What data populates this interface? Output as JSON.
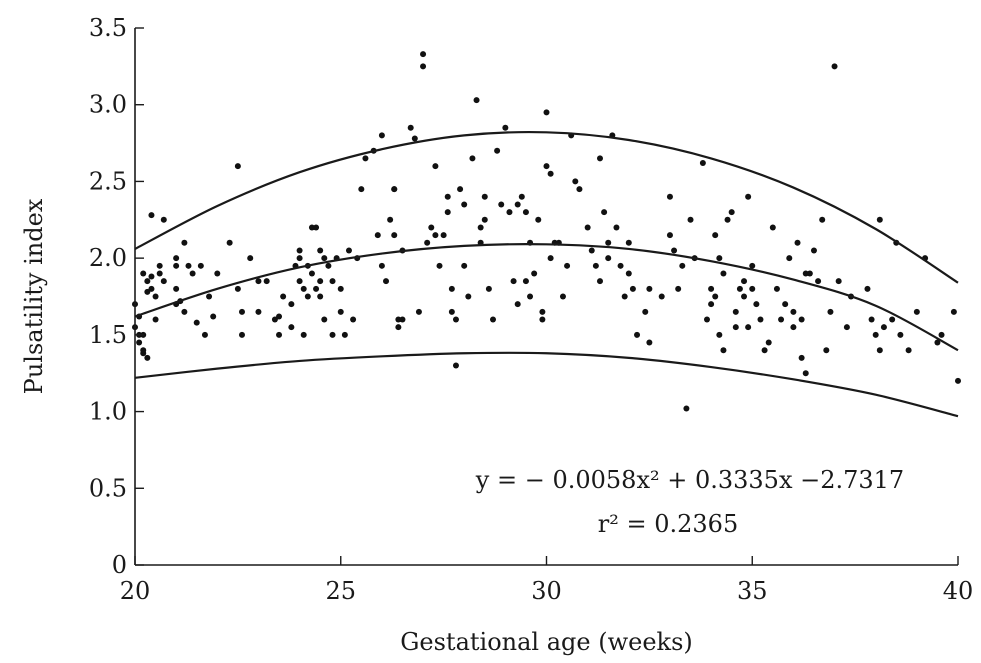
{
  "chart_data": {
    "type": "scatter",
    "xlabel": "Gestational age (weeks)",
    "ylabel": "Pulsatility index",
    "xlim": [
      20,
      40
    ],
    "ylim": [
      0,
      3.5
    ],
    "x_ticks": [
      20,
      25,
      30,
      35,
      40
    ],
    "x_tick_labels": [
      "20",
      "25",
      "30",
      "35",
      "40"
    ],
    "y_ticks": [
      0,
      0.5,
      1.0,
      1.5,
      2.0,
      2.5,
      3.0,
      3.5
    ],
    "y_tick_labels": [
      "0",
      "0.5",
      "1.0",
      "1.5",
      "2.0",
      "2.5",
      "3.0",
      "3.5"
    ],
    "grid": false,
    "annotations": [
      "y = − 0.0058x² + 0.3335x −2.7317",
      "r² = 0.2365"
    ],
    "curves": [
      {
        "x": [
          20,
          22,
          24,
          26,
          28,
          30,
          32,
          34,
          36,
          38,
          40
        ],
        "y": [
          2.06,
          2.34,
          2.56,
          2.71,
          2.8,
          2.82,
          2.77,
          2.65,
          2.46,
          2.19,
          1.84
        ]
      },
      {
        "x": [
          20,
          22,
          24,
          26,
          28,
          30,
          32,
          34,
          36,
          38,
          40
        ],
        "y": [
          1.62,
          1.8,
          1.94,
          2.03,
          2.08,
          2.09,
          2.06,
          1.98,
          1.86,
          1.69,
          1.4
        ]
      },
      {
        "x": [
          20,
          22,
          24,
          26,
          28,
          30,
          32,
          34,
          36,
          38,
          40
        ],
        "y": [
          1.22,
          1.28,
          1.33,
          1.36,
          1.38,
          1.38,
          1.35,
          1.29,
          1.21,
          1.11,
          0.97
        ]
      }
    ],
    "points": [
      [
        20.0,
        1.7
      ],
      [
        20.0,
        1.55
      ],
      [
        20.1,
        1.5
      ],
      [
        20.1,
        1.45
      ],
      [
        20.1,
        1.62
      ],
      [
        20.2,
        1.5
      ],
      [
        20.2,
        1.38
      ],
      [
        20.2,
        1.4
      ],
      [
        20.2,
        1.9
      ],
      [
        20.3,
        1.85
      ],
      [
        20.3,
        1.35
      ],
      [
        20.3,
        1.78
      ],
      [
        20.4,
        1.8
      ],
      [
        20.4,
        1.88
      ],
      [
        20.4,
        2.28
      ],
      [
        20.5,
        1.75
      ],
      [
        20.5,
        1.6
      ],
      [
        20.6,
        1.95
      ],
      [
        20.6,
        1.9
      ],
      [
        20.7,
        2.25
      ],
      [
        20.7,
        1.85
      ],
      [
        21.0,
        2.0
      ],
      [
        21.0,
        1.95
      ],
      [
        21.0,
        1.8
      ],
      [
        21.0,
        1.7
      ],
      [
        21.1,
        1.72
      ],
      [
        21.2,
        1.65
      ],
      [
        21.2,
        2.1
      ],
      [
        21.3,
        1.95
      ],
      [
        21.4,
        1.9
      ],
      [
        21.5,
        1.58
      ],
      [
        21.6,
        1.95
      ],
      [
        21.7,
        1.5
      ],
      [
        21.8,
        1.75
      ],
      [
        21.9,
        1.62
      ],
      [
        22.0,
        1.9
      ],
      [
        22.3,
        2.1
      ],
      [
        22.5,
        2.6
      ],
      [
        22.5,
        1.8
      ],
      [
        22.6,
        1.5
      ],
      [
        22.6,
        1.65
      ],
      [
        22.8,
        2.0
      ],
      [
        23.0,
        1.65
      ],
      [
        23.0,
        1.85
      ],
      [
        23.2,
        1.85
      ],
      [
        23.4,
        1.6
      ],
      [
        23.5,
        1.62
      ],
      [
        23.5,
        1.5
      ],
      [
        23.6,
        1.75
      ],
      [
        23.8,
        1.55
      ],
      [
        23.8,
        1.7
      ],
      [
        23.9,
        1.95
      ],
      [
        24.0,
        2.05
      ],
      [
        24.0,
        2.0
      ],
      [
        24.0,
        1.85
      ],
      [
        24.1,
        1.8
      ],
      [
        24.1,
        1.5
      ],
      [
        24.2,
        1.75
      ],
      [
        24.2,
        1.95
      ],
      [
        24.3,
        1.9
      ],
      [
        24.3,
        2.2
      ],
      [
        24.4,
        2.2
      ],
      [
        24.4,
        1.8
      ],
      [
        24.5,
        1.85
      ],
      [
        24.5,
        2.05
      ],
      [
        24.5,
        1.75
      ],
      [
        24.6,
        1.6
      ],
      [
        24.6,
        2.0
      ],
      [
        24.7,
        1.95
      ],
      [
        24.8,
        1.5
      ],
      [
        24.8,
        1.85
      ],
      [
        24.9,
        2.0
      ],
      [
        25.0,
        1.8
      ],
      [
        25.0,
        1.65
      ],
      [
        25.1,
        1.5
      ],
      [
        25.2,
        2.05
      ],
      [
        25.3,
        1.6
      ],
      [
        25.4,
        2.0
      ],
      [
        25.5,
        2.45
      ],
      [
        25.6,
        2.65
      ],
      [
        25.8,
        2.7
      ],
      [
        25.9,
        2.15
      ],
      [
        26.0,
        2.8
      ],
      [
        26.0,
        1.95
      ],
      [
        26.1,
        1.85
      ],
      [
        26.2,
        2.25
      ],
      [
        26.3,
        2.45
      ],
      [
        26.3,
        2.45
      ],
      [
        26.3,
        2.15
      ],
      [
        26.4,
        1.6
      ],
      [
        26.4,
        1.55
      ],
      [
        26.5,
        1.6
      ],
      [
        26.5,
        2.05
      ],
      [
        26.7,
        2.85
      ],
      [
        26.8,
        2.78
      ],
      [
        26.9,
        1.65
      ],
      [
        27.0,
        3.33
      ],
      [
        27.0,
        3.25
      ],
      [
        27.1,
        2.1
      ],
      [
        27.2,
        2.2
      ],
      [
        27.3,
        2.15
      ],
      [
        27.3,
        2.6
      ],
      [
        27.4,
        1.95
      ],
      [
        27.5,
        2.15
      ],
      [
        27.6,
        2.4
      ],
      [
        27.6,
        2.3
      ],
      [
        27.7,
        1.8
      ],
      [
        27.7,
        1.65
      ],
      [
        27.8,
        1.6
      ],
      [
        27.8,
        1.3
      ],
      [
        27.9,
        2.45
      ],
      [
        28.0,
        2.35
      ],
      [
        28.0,
        1.95
      ],
      [
        28.1,
        1.75
      ],
      [
        28.2,
        2.65
      ],
      [
        28.3,
        3.03
      ],
      [
        28.4,
        2.2
      ],
      [
        28.4,
        2.1
      ],
      [
        28.5,
        2.4
      ],
      [
        28.5,
        2.25
      ],
      [
        28.6,
        1.8
      ],
      [
        28.7,
        1.6
      ],
      [
        28.8,
        2.7
      ],
      [
        28.9,
        2.35
      ],
      [
        29.0,
        2.85
      ],
      [
        29.1,
        2.3
      ],
      [
        29.2,
        1.85
      ],
      [
        29.3,
        1.7
      ],
      [
        29.3,
        2.35
      ],
      [
        29.4,
        2.4
      ],
      [
        29.5,
        2.3
      ],
      [
        29.5,
        1.85
      ],
      [
        29.6,
        2.1
      ],
      [
        29.6,
        1.75
      ],
      [
        29.7,
        1.9
      ],
      [
        29.8,
        2.25
      ],
      [
        29.9,
        1.65
      ],
      [
        29.9,
        1.6
      ],
      [
        30.0,
        2.95
      ],
      [
        30.0,
        2.6
      ],
      [
        30.1,
        2.55
      ],
      [
        30.1,
        2.0
      ],
      [
        30.2,
        2.1
      ],
      [
        30.3,
        2.1
      ],
      [
        30.4,
        1.75
      ],
      [
        30.5,
        1.95
      ],
      [
        30.6,
        2.8
      ],
      [
        30.7,
        2.5
      ],
      [
        30.8,
        2.45
      ],
      [
        31.0,
        2.2
      ],
      [
        31.1,
        2.05
      ],
      [
        31.2,
        1.95
      ],
      [
        31.3,
        2.65
      ],
      [
        31.3,
        1.85
      ],
      [
        31.4,
        2.3
      ],
      [
        31.5,
        2.1
      ],
      [
        31.5,
        2.0
      ],
      [
        31.6,
        2.8
      ],
      [
        31.7,
        2.2
      ],
      [
        31.8,
        1.95
      ],
      [
        31.9,
        1.75
      ],
      [
        32.0,
        2.1
      ],
      [
        32.0,
        1.9
      ],
      [
        32.1,
        1.8
      ],
      [
        32.2,
        1.5
      ],
      [
        32.4,
        1.65
      ],
      [
        32.5,
        1.8
      ],
      [
        32.5,
        1.45
      ],
      [
        32.8,
        1.75
      ],
      [
        33.0,
        2.4
      ],
      [
        33.0,
        2.15
      ],
      [
        33.1,
        2.05
      ],
      [
        33.2,
        1.8
      ],
      [
        33.3,
        1.95
      ],
      [
        33.4,
        1.02
      ],
      [
        33.5,
        2.25
      ],
      [
        33.6,
        2.0
      ],
      [
        33.8,
        2.62
      ],
      [
        33.9,
        1.6
      ],
      [
        34.0,
        1.8
      ],
      [
        34.0,
        1.7
      ],
      [
        34.1,
        1.75
      ],
      [
        34.1,
        2.15
      ],
      [
        34.2,
        2.0
      ],
      [
        34.2,
        1.5
      ],
      [
        34.3,
        1.4
      ],
      [
        34.3,
        1.9
      ],
      [
        34.4,
        2.25
      ],
      [
        34.5,
        2.3
      ],
      [
        34.6,
        1.65
      ],
      [
        34.6,
        1.55
      ],
      [
        34.7,
        1.8
      ],
      [
        34.8,
        1.85
      ],
      [
        34.8,
        1.75
      ],
      [
        34.9,
        1.55
      ],
      [
        34.9,
        2.4
      ],
      [
        35.0,
        1.95
      ],
      [
        35.0,
        1.8
      ],
      [
        35.1,
        1.7
      ],
      [
        35.2,
        1.6
      ],
      [
        35.3,
        1.4
      ],
      [
        35.4,
        1.45
      ],
      [
        35.5,
        2.2
      ],
      [
        35.6,
        1.8
      ],
      [
        35.7,
        1.6
      ],
      [
        35.8,
        1.7
      ],
      [
        35.9,
        2.0
      ],
      [
        36.0,
        1.55
      ],
      [
        36.0,
        1.65
      ],
      [
        36.1,
        2.1
      ],
      [
        36.2,
        1.35
      ],
      [
        36.2,
        1.6
      ],
      [
        36.3,
        1.9
      ],
      [
        36.3,
        1.25
      ],
      [
        36.4,
        1.9
      ],
      [
        36.5,
        2.05
      ],
      [
        36.6,
        1.85
      ],
      [
        36.7,
        2.25
      ],
      [
        36.8,
        1.4
      ],
      [
        36.9,
        1.65
      ],
      [
        37.0,
        3.25
      ],
      [
        37.1,
        1.85
      ],
      [
        37.3,
        1.55
      ],
      [
        37.4,
        1.75
      ],
      [
        37.8,
        1.8
      ],
      [
        37.9,
        1.6
      ],
      [
        38.0,
        1.5
      ],
      [
        38.1,
        1.4
      ],
      [
        38.1,
        2.25
      ],
      [
        38.2,
        1.55
      ],
      [
        38.4,
        1.6
      ],
      [
        38.5,
        2.1
      ],
      [
        38.6,
        1.5
      ],
      [
        38.8,
        1.4
      ],
      [
        39.0,
        1.65
      ],
      [
        39.2,
        2.0
      ],
      [
        39.5,
        1.45
      ],
      [
        39.6,
        1.5
      ],
      [
        40.0,
        1.2
      ],
      [
        39.9,
        1.65
      ]
    ]
  }
}
